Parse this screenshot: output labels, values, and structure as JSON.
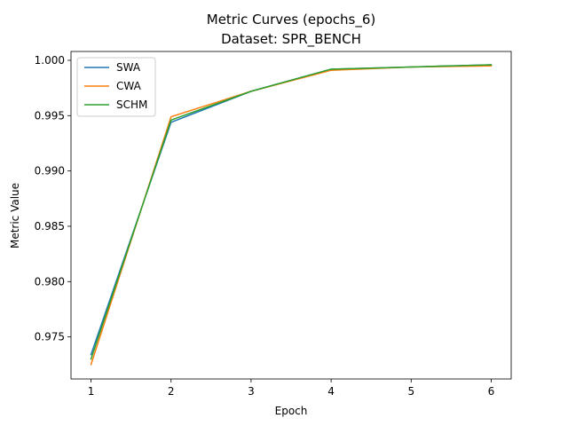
{
  "chart_data": {
    "type": "line",
    "title": "Metric Curves (epochs_6)",
    "subtitle": "Dataset: SPR_BENCH",
    "xlabel": "Epoch",
    "ylabel": "Metric Value",
    "x": [
      1,
      2,
      3,
      4,
      5,
      6
    ],
    "xlim": [
      0.75,
      6.25
    ],
    "ylim": [
      0.9712,
      1.0008
    ],
    "xticks": [
      1,
      2,
      3,
      4,
      5,
      6
    ],
    "xtick_labels": [
      "1",
      "2",
      "3",
      "4",
      "5",
      "6"
    ],
    "yticks": [
      0.975,
      0.98,
      0.985,
      0.99,
      0.995,
      1.0
    ],
    "ytick_labels": [
      "0.975",
      "0.980",
      "0.985",
      "0.990",
      "0.995",
      "1.000"
    ],
    "grid": false,
    "legend_position": "upper-left",
    "series": [
      {
        "name": "SWA",
        "color": "#1f77b4",
        "values": [
          0.9734,
          0.9944,
          0.9972,
          0.9992,
          0.9994,
          0.9996
        ]
      },
      {
        "name": "CWA",
        "color": "#ff7f0e",
        "values": [
          0.9725,
          0.9949,
          0.9972,
          0.9991,
          0.9994,
          0.9995
        ]
      },
      {
        "name": "SCHM",
        "color": "#2ca02c",
        "values": [
          0.973,
          0.9946,
          0.9972,
          0.9992,
          0.9994,
          0.9996
        ]
      }
    ]
  }
}
